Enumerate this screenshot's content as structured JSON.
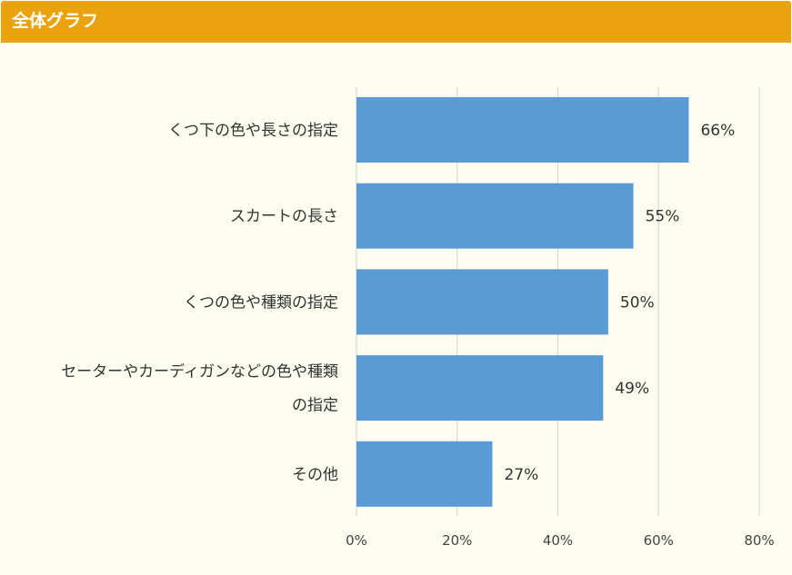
{
  "header": {
    "title": "全体グラフ"
  },
  "colors": {
    "header": "#eba20f",
    "bar": "#5b9bd5",
    "grid": "#d9d9d9",
    "background": "#fefdf1"
  },
  "chart_data": {
    "type": "bar",
    "orientation": "horizontal",
    "categories": [
      [
        "くつ下の色や長さの指定"
      ],
      [
        "スカートの長さ"
      ],
      [
        "くつの色や種類の指定"
      ],
      [
        "セーターやカーディガンなどの色や種類",
        "の指定"
      ],
      [
        "その他"
      ]
    ],
    "values": [
      66,
      55,
      50,
      49,
      27
    ],
    "value_labels": [
      "66%",
      "55%",
      "50%",
      "49%",
      "27%"
    ],
    "xlim": [
      0,
      80
    ],
    "ticks": [
      0,
      20,
      40,
      60,
      80
    ],
    "tick_labels": [
      "0%",
      "20%",
      "40%",
      "60%",
      "80%"
    ],
    "grid": true
  }
}
